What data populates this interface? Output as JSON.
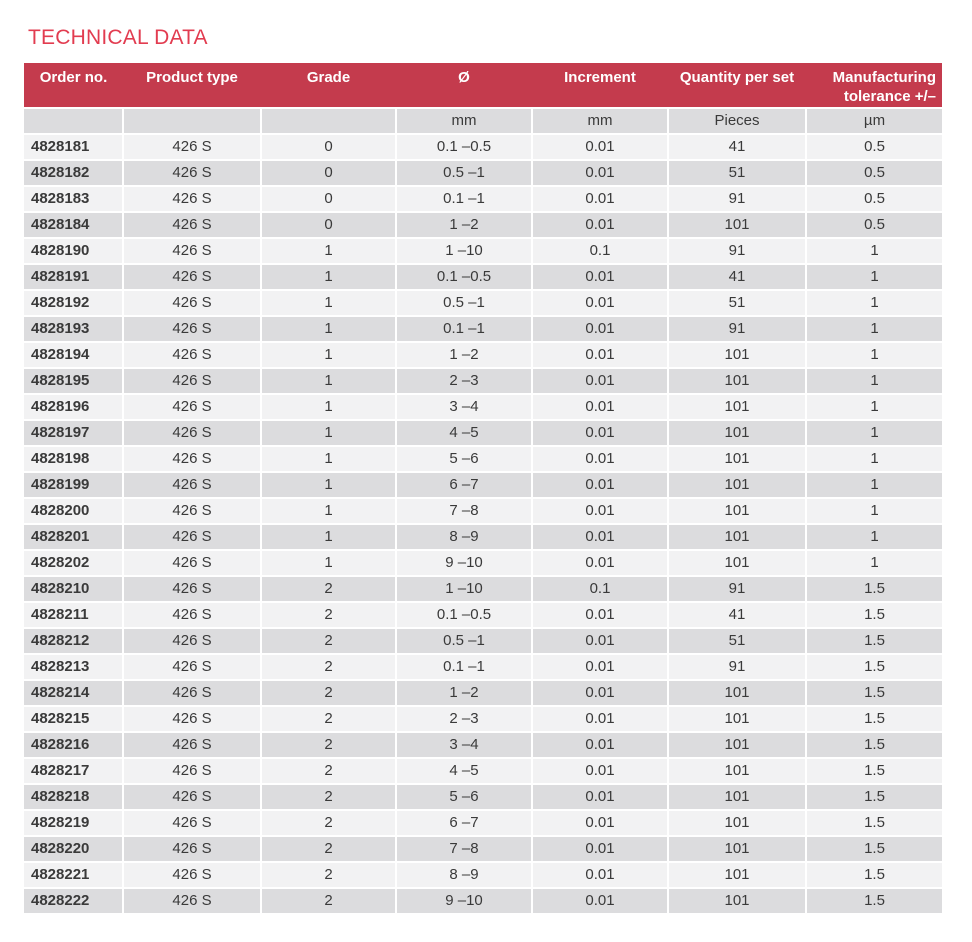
{
  "page": {
    "title": "TECHNICAL DATA"
  },
  "colors": {
    "title_red": "#e23c50",
    "accent_red": "#c43b4d",
    "row_light": "#f2f2f3",
    "row_dark": "#dcdcde",
    "header_text": "#ffffff",
    "body_text": "#3a3a3a"
  },
  "table": {
    "columns": [
      {
        "label": "Order no.",
        "unit": ""
      },
      {
        "label": "Product type",
        "unit": ""
      },
      {
        "label": "Grade",
        "unit": ""
      },
      {
        "label": "Ø",
        "unit": "mm"
      },
      {
        "label": "Increment",
        "unit": "mm"
      },
      {
        "label": "Quantity per set",
        "unit": "Pieces"
      },
      {
        "label": "Manufacturing tolerance +/–",
        "unit": "µm"
      }
    ],
    "rows": [
      [
        "4828181",
        "426 S",
        "0",
        "0.1 –0.5",
        "0.01",
        "41",
        "0.5"
      ],
      [
        "4828182",
        "426 S",
        "0",
        "0.5 –1",
        "0.01",
        "51",
        "0.5"
      ],
      [
        "4828183",
        "426 S",
        "0",
        "0.1 –1",
        "0.01",
        "91",
        "0.5"
      ],
      [
        "4828184",
        "426 S",
        "0",
        "1 –2",
        "0.01",
        "101",
        "0.5"
      ],
      [
        "4828190",
        "426 S",
        "1",
        "1 –10",
        "0.1",
        "91",
        "1"
      ],
      [
        "4828191",
        "426 S",
        "1",
        "0.1 –0.5",
        "0.01",
        "41",
        "1"
      ],
      [
        "4828192",
        "426 S",
        "1",
        "0.5 –1",
        "0.01",
        "51",
        "1"
      ],
      [
        "4828193",
        "426 S",
        "1",
        "0.1 –1",
        "0.01",
        "91",
        "1"
      ],
      [
        "4828194",
        "426 S",
        "1",
        "1 –2",
        "0.01",
        "101",
        "1"
      ],
      [
        "4828195",
        "426 S",
        "1",
        "2 –3",
        "0.01",
        "101",
        "1"
      ],
      [
        "4828196",
        "426 S",
        "1",
        "3 –4",
        "0.01",
        "101",
        "1"
      ],
      [
        "4828197",
        "426 S",
        "1",
        "4 –5",
        "0.01",
        "101",
        "1"
      ],
      [
        "4828198",
        "426 S",
        "1",
        "5 –6",
        "0.01",
        "101",
        "1"
      ],
      [
        "4828199",
        "426 S",
        "1",
        "6 –7",
        "0.01",
        "101",
        "1"
      ],
      [
        "4828200",
        "426 S",
        "1",
        "7 –8",
        "0.01",
        "101",
        "1"
      ],
      [
        "4828201",
        "426 S",
        "1",
        "8 –9",
        "0.01",
        "101",
        "1"
      ],
      [
        "4828202",
        "426 S",
        "1",
        "9 –10",
        "0.01",
        "101",
        "1"
      ],
      [
        "4828210",
        "426 S",
        "2",
        "1 –10",
        "0.1",
        "91",
        "1.5"
      ],
      [
        "4828211",
        "426 S",
        "2",
        "0.1 –0.5",
        "0.01",
        "41",
        "1.5"
      ],
      [
        "4828212",
        "426 S",
        "2",
        "0.5 –1",
        "0.01",
        "51",
        "1.5"
      ],
      [
        "4828213",
        "426 S",
        "2",
        "0.1 –1",
        "0.01",
        "91",
        "1.5"
      ],
      [
        "4828214",
        "426 S",
        "2",
        "1 –2",
        "0.01",
        "101",
        "1.5"
      ],
      [
        "4828215",
        "426 S",
        "2",
        "2 –3",
        "0.01",
        "101",
        "1.5"
      ],
      [
        "4828216",
        "426 S",
        "2",
        "3 –4",
        "0.01",
        "101",
        "1.5"
      ],
      [
        "4828217",
        "426 S",
        "2",
        "4 –5",
        "0.01",
        "101",
        "1.5"
      ],
      [
        "4828218",
        "426 S",
        "2",
        "5 –6",
        "0.01",
        "101",
        "1.5"
      ],
      [
        "4828219",
        "426 S",
        "2",
        "6 –7",
        "0.01",
        "101",
        "1.5"
      ],
      [
        "4828220",
        "426 S",
        "2",
        "7 –8",
        "0.01",
        "101",
        "1.5"
      ],
      [
        "4828221",
        "426 S",
        "2",
        "8 –9",
        "0.01",
        "101",
        "1.5"
      ],
      [
        "4828222",
        "426 S",
        "2",
        "9 –10",
        "0.01",
        "101",
        "1.5"
      ]
    ]
  }
}
